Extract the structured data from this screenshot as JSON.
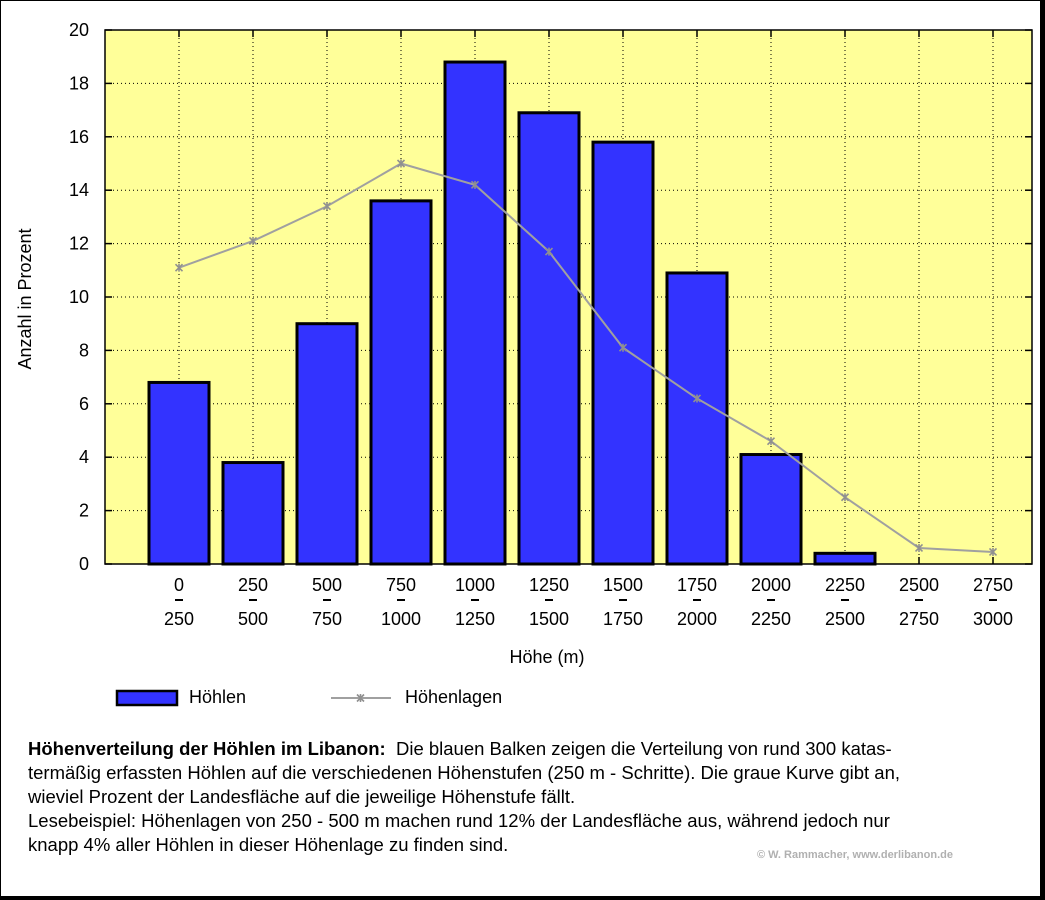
{
  "chart_data": {
    "type": "bar",
    "categories_top": [
      "0",
      "250",
      "500",
      "750",
      "1000",
      "1250",
      "1500",
      "1750",
      "2000",
      "2250",
      "2500",
      "2750"
    ],
    "categories_bottom": [
      "250",
      "500",
      "750",
      "1000",
      "1250",
      "1500",
      "1750",
      "2000",
      "2250",
      "2500",
      "2750",
      "3000"
    ],
    "series": [
      {
        "name": "Höhlen",
        "kind": "bar",
        "color": "#3333ff",
        "values": [
          6.8,
          3.8,
          9.0,
          13.6,
          18.8,
          16.9,
          15.8,
          10.9,
          4.1,
          0.4,
          null,
          null
        ]
      },
      {
        "name": "Höhenlagen",
        "kind": "line",
        "color": "#a0a0a0",
        "values": [
          11.1,
          12.1,
          13.4,
          15.0,
          14.2,
          11.7,
          8.1,
          6.2,
          4.6,
          2.5,
          0.6,
          0.45
        ]
      }
    ],
    "xlabel": "Höhe (m)",
    "ylabel": "Anzahl in Prozent",
    "ylim": [
      0,
      20
    ],
    "yticks": [
      0,
      2,
      4,
      6,
      8,
      10,
      12,
      14,
      16,
      18,
      20
    ],
    "grid": true,
    "plot_background": "#ffff99",
    "legend_position": "bottom-left"
  },
  "caption": {
    "title": "Höhenverteilung der Höhlen im Libanon:",
    "line1": "Die blauen Balken zeigen die Verteilung von rund 300 katas-",
    "line2": "termäßig erfassten Höhlen auf die verschiedenen Höhenstufen (250 m - Schritte). Die graue Kurve gibt an,",
    "line3": "wieviel Prozent der Landesfläche auf die jeweilige Höhenstufe fällt.",
    "line4": "Lesebeispiel: Höhenlagen von 250 - 500 m machen rund 12% der Landesfläche aus, während jedoch nur",
    "line5": "knapp 4% aller Höhlen in dieser Höhenlage zu finden sind."
  },
  "copyright": "© W. Rammacher, www.derlibanon.de"
}
